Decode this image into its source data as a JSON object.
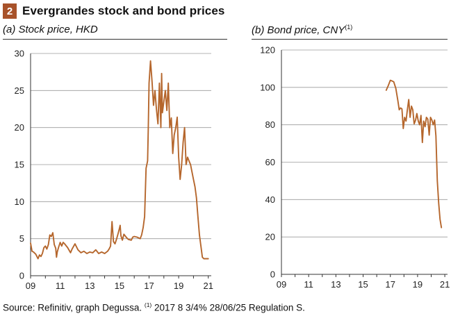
{
  "header": {
    "number": "2",
    "title": "Evergrandes stock and bond prices"
  },
  "panels": {
    "left": {
      "title": "(a) Stock price, HKD",
      "sup": ""
    },
    "right": {
      "title": "(b) Bond price, CNY",
      "sup": "(1)"
    }
  },
  "source": {
    "text1": "Source: Refinitiv, graph Degussa. ",
    "sup": "(1)",
    "text2": " 2017 8 3/4% 28/06/25 Regulation S."
  },
  "colors": {
    "line": "#b5662c",
    "accent": "#a8522a"
  },
  "chart_data": [
    {
      "type": "line",
      "title": "(a) Stock price, HKD",
      "xlabel": "",
      "ylabel": "",
      "xlim": [
        2009,
        2021.2
      ],
      "ylim": [
        0,
        30
      ],
      "x_ticks": [
        "09",
        "11",
        "13",
        "15",
        "17",
        "19",
        "21"
      ],
      "x_tick_values": [
        2009,
        2011,
        2013,
        2015,
        2017,
        2019,
        2021
      ],
      "y_ticks": [
        0,
        5,
        10,
        15,
        20,
        25,
        30
      ],
      "grid": true,
      "series": [
        {
          "x": [
            2009.0,
            2009.1,
            2009.2,
            2009.35,
            2009.5,
            2009.6,
            2009.7,
            2009.8,
            2009.9,
            2010.0,
            2010.1,
            2010.2,
            2010.3,
            2010.4,
            2010.5,
            2010.6,
            2010.7,
            2010.75,
            2010.8,
            2010.9,
            2011.0,
            2011.1,
            2011.2,
            2011.3,
            2011.5,
            2011.7,
            2011.8,
            2012.0,
            2012.2,
            2012.4,
            2012.6,
            2012.8,
            2013.0,
            2013.2,
            2013.4,
            2013.6,
            2013.8,
            2014.0,
            2014.2,
            2014.3,
            2014.4,
            2014.5,
            2014.6,
            2014.7,
            2014.8,
            2014.9,
            2015.0,
            2015.05,
            2015.1,
            2015.2,
            2015.3,
            2015.5,
            2015.6,
            2015.8,
            2015.9,
            2016.0,
            2016.2,
            2016.4,
            2016.5,
            2016.6,
            2016.7,
            2016.8,
            2016.9,
            2016.95,
            2017.0,
            2017.1,
            2017.2,
            2017.3,
            2017.4,
            2017.5,
            2017.6,
            2017.7,
            2017.8,
            2017.85,
            2017.9,
            2018.0,
            2018.1,
            2018.2,
            2018.3,
            2018.4,
            2018.5,
            2018.6,
            2018.7,
            2018.8,
            2018.9,
            2019.0,
            2019.1,
            2019.2,
            2019.3,
            2019.4,
            2019.5,
            2019.6,
            2019.7,
            2019.8,
            2019.9,
            2020.0,
            2020.1,
            2020.2,
            2020.3,
            2020.4,
            2020.5,
            2020.6,
            2020.7,
            2020.8,
            2020.9,
            2021.0
          ],
          "values": [
            4.4,
            3.3,
            3.2,
            2.9,
            2.3,
            2.8,
            2.6,
            3.0,
            3.8,
            4.0,
            3.6,
            4.2,
            5.5,
            5.3,
            5.8,
            4.2,
            3.7,
            2.5,
            3.2,
            3.9,
            4.5,
            4.0,
            4.5,
            4.3,
            3.8,
            3.1,
            3.6,
            4.3,
            3.5,
            3.1,
            3.3,
            3.0,
            3.2,
            3.1,
            3.5,
            3.0,
            3.2,
            3.0,
            3.3,
            3.6,
            4.0,
            7.3,
            4.6,
            4.3,
            4.9,
            5.6,
            6.4,
            6.8,
            5.4,
            4.8,
            5.6,
            5.1,
            4.9,
            4.8,
            5.2,
            5.3,
            5.2,
            5.0,
            5.5,
            6.5,
            8.0,
            14.5,
            15.5,
            20.0,
            26.0,
            29.0,
            26.2,
            23.0,
            25.0,
            22.5,
            20.5,
            26.0,
            20.0,
            27.3,
            22.0,
            23.5,
            25.0,
            22.3,
            26.0,
            20.0,
            21.3,
            16.5,
            19.0,
            20.0,
            21.4,
            16.0,
            13.0,
            15.0,
            18.0,
            20.0,
            15.0,
            16.0,
            15.5,
            15.0,
            14.0,
            13.0,
            12.0,
            10.5,
            8.0,
            5.5,
            4.0,
            2.5,
            2.3,
            2.3,
            2.3,
            2.3
          ]
        }
      ]
    },
    {
      "type": "line",
      "title": "(b) Bond price, CNY",
      "xlabel": "",
      "ylabel": "",
      "xlim": [
        2009,
        2021.2
      ],
      "ylim": [
        0,
        120
      ],
      "x_ticks": [
        "09",
        "11",
        "13",
        "15",
        "17",
        "19",
        "21"
      ],
      "x_tick_values": [
        2009,
        2011,
        2013,
        2015,
        2017,
        2019,
        2021
      ],
      "y_ticks": [
        0,
        20,
        40,
        60,
        80,
        100,
        120
      ],
      "grid": true,
      "series": [
        {
          "x": [
            2016.7,
            2016.85,
            2017.0,
            2017.1,
            2017.25,
            2017.4,
            2017.55,
            2017.65,
            2017.75,
            2017.85,
            2017.95,
            2018.05,
            2018.15,
            2018.25,
            2018.35,
            2018.45,
            2018.55,
            2018.65,
            2018.75,
            2018.85,
            2018.95,
            2019.05,
            2019.15,
            2019.25,
            2019.35,
            2019.45,
            2019.55,
            2019.65,
            2019.75,
            2019.85,
            2019.95,
            2020.05,
            2020.15,
            2020.25,
            2020.35,
            2020.45,
            2020.55,
            2020.65,
            2020.75
          ],
          "values": [
            98.5,
            101.0,
            103.8,
            103.5,
            103.0,
            99.5,
            93.0,
            88.0,
            89.0,
            88.5,
            78.0,
            84.0,
            82.0,
            88.0,
            93.5,
            84.0,
            90.0,
            88.0,
            80.5,
            82.5,
            86.0,
            82.0,
            80.0,
            85.0,
            70.5,
            82.0,
            79.0,
            84.0,
            83.0,
            74.5,
            84.0,
            82.5,
            80.0,
            82.5,
            74.0,
            50.0,
            38.0,
            29.5,
            25.0
          ]
        }
      ]
    }
  ]
}
